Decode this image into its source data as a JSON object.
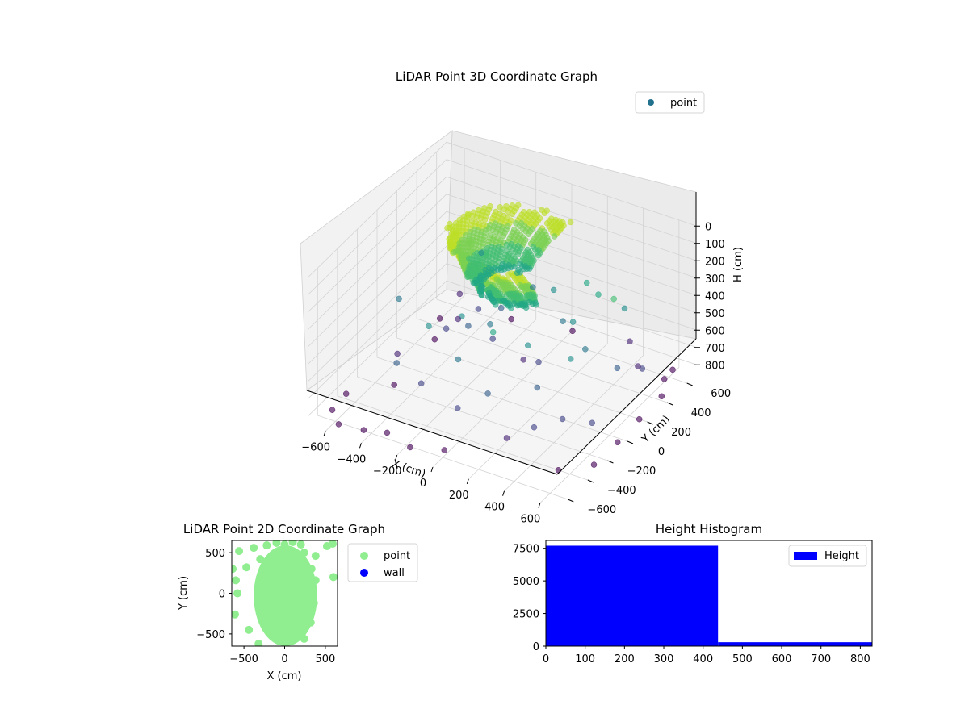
{
  "chart_data": [
    {
      "type": "scatter",
      "title": "LiDAR Point 3D Coordinate Graph",
      "xlabel": "X (cm)",
      "ylabel": "Y (cm)",
      "zlabel": "H (cm)",
      "xlim": [
        -700,
        700
      ],
      "ylim": [
        -700,
        700
      ],
      "zlim": [
        850,
        0
      ],
      "x_ticks": [
        "−600",
        "−400",
        "−200",
        "0",
        "200",
        "400",
        "600"
      ],
      "y_ticks": [
        "−600",
        "−400",
        "−200",
        "0",
        "200",
        "400",
        "600"
      ],
      "z_ticks": [
        "0",
        "100",
        "200",
        "300",
        "400",
        "500",
        "600",
        "700",
        "800"
      ],
      "legend": {
        "position": "top-right",
        "entries": [
          "point"
        ]
      },
      "colormap": "viridis (colour by height)",
      "grid": true,
      "series": [
        {
          "name": "point",
          "dome": {
            "radius_cm": 560,
            "height_cm": [
              0,
              260
            ]
          },
          "scattered_points": [
            [
              -560,
              380,
              790
            ],
            [
              -500,
              220,
              800
            ],
            [
              -430,
              330,
              720
            ],
            [
              -380,
              120,
              640
            ],
            [
              -300,
              300,
              600
            ],
            [
              -240,
              90,
              560
            ],
            [
              -150,
              260,
              520
            ],
            [
              -90,
              40,
              470
            ],
            [
              -40,
              380,
              430
            ],
            [
              30,
              160,
              700
            ],
            [
              110,
              320,
              360
            ],
            [
              170,
              60,
              610
            ],
            [
              240,
              420,
              330
            ],
            [
              290,
              190,
              410
            ],
            [
              360,
              320,
              300
            ],
            [
              420,
              80,
              460
            ],
            [
              480,
              260,
              250
            ],
            [
              520,
              430,
              720
            ],
            [
              560,
              150,
              560
            ],
            [
              600,
              330,
              650
            ],
            [
              640,
              480,
              780
            ],
            [
              -520,
              -120,
              700
            ],
            [
              -460,
              -260,
              780
            ],
            [
              -380,
              -380,
              560
            ],
            [
              -300,
              -200,
              420
            ],
            [
              -220,
              -420,
              600
            ],
            [
              -160,
              -120,
              360
            ],
            [
              -80,
              -300,
              480
            ],
            [
              0,
              -450,
              650
            ],
            [
              60,
              -200,
              330
            ],
            [
              130,
              -380,
              560
            ],
            [
              210,
              -120,
              400
            ],
            [
              280,
              -460,
              720
            ],
            [
              340,
              -260,
              520
            ],
            [
              400,
              -400,
              650
            ],
            [
              460,
              -140,
              380
            ],
            [
              520,
              -330,
              600
            ],
            [
              580,
              -480,
              790
            ],
            [
              630,
              -230,
              640
            ],
            [
              -600,
              40,
              500
            ],
            [
              -560,
              580,
              760
            ],
            [
              -260,
              560,
              790
            ],
            [
              60,
              600,
              770
            ],
            [
              380,
              600,
              720
            ],
            [
              620,
              600,
              800
            ],
            [
              680,
              380,
              810
            ],
            [
              700,
              120,
              790
            ],
            [
              700,
              -100,
              800
            ],
            [
              690,
              -320,
              810
            ],
            [
              -640,
              -420,
              805
            ],
            [
              -640,
              -560,
              820
            ],
            [
              -560,
              -640,
              830
            ],
            [
              -420,
              -640,
              815
            ],
            [
              -300,
              -620,
              800
            ],
            [
              -160,
              -640,
              825
            ],
            [
              20,
              -620,
              790
            ],
            [
              -120,
              120,
              610
            ],
            [
              200,
              250,
              470
            ],
            [
              -350,
              420,
              360
            ],
            [
              440,
              440,
              420
            ]
          ]
        }
      ]
    },
    {
      "type": "scatter",
      "title": "LiDAR Point 2D Coordinate Graph",
      "xlabel": "X (cm)",
      "ylabel": "Y (cm)",
      "xlim": [
        -650,
        650
      ],
      "ylim": [
        -650,
        650
      ],
      "x_ticks": [
        -500,
        0,
        500
      ],
      "y_ticks": [
        -500,
        0,
        500
      ],
      "legend": {
        "position": "right-outside",
        "entries": [
          "point",
          "wall"
        ]
      },
      "series": [
        {
          "name": "point",
          "color": "#90ee90",
          "main_cloud": {
            "center": [
              10,
              -30
            ],
            "radius_x": 390,
            "radius_y": 620
          },
          "points": [
            [
              -600,
              160
            ],
            [
              -580,
              0
            ],
            [
              -610,
              -260
            ],
            [
              -560,
              520
            ],
            [
              -380,
              560
            ],
            [
              -320,
              -620
            ],
            [
              -220,
              590
            ],
            [
              -100,
              620
            ],
            [
              200,
              600
            ],
            [
              240,
              500
            ],
            [
              330,
              300
            ],
            [
              380,
              160
            ],
            [
              360,
              -120
            ],
            [
              320,
              -360
            ],
            [
              240,
              -560
            ],
            [
              100,
              630
            ],
            [
              -440,
              -450
            ],
            [
              -470,
              320
            ],
            [
              -300,
              420
            ],
            [
              0,
              600
            ],
            [
              380,
              460
            ],
            [
              600,
              200
            ],
            [
              590,
              610
            ],
            [
              520,
              580
            ],
            [
              -640,
              300
            ]
          ]
        },
        {
          "name": "wall",
          "color": "#0000ff",
          "points": []
        }
      ]
    },
    {
      "type": "bar",
      "title": "Height Histogram",
      "xlabel": "",
      "ylabel": "",
      "xlim": [
        0,
        830
      ],
      "ylim": [
        0,
        8100
      ],
      "x_ticks": [
        0,
        100,
        200,
        300,
        400,
        500,
        600,
        700,
        800
      ],
      "y_ticks": [
        0,
        2500,
        5000,
        7500
      ],
      "bins": [
        [
          0,
          438
        ],
        [
          438,
          830
        ]
      ],
      "values": [
        7700,
        300
      ],
      "legend": {
        "position": "top-right",
        "entries": [
          "Height"
        ]
      },
      "series": [
        {
          "name": "Height",
          "color": "#0000ff",
          "values": [
            7700,
            300
          ]
        }
      ]
    }
  ]
}
